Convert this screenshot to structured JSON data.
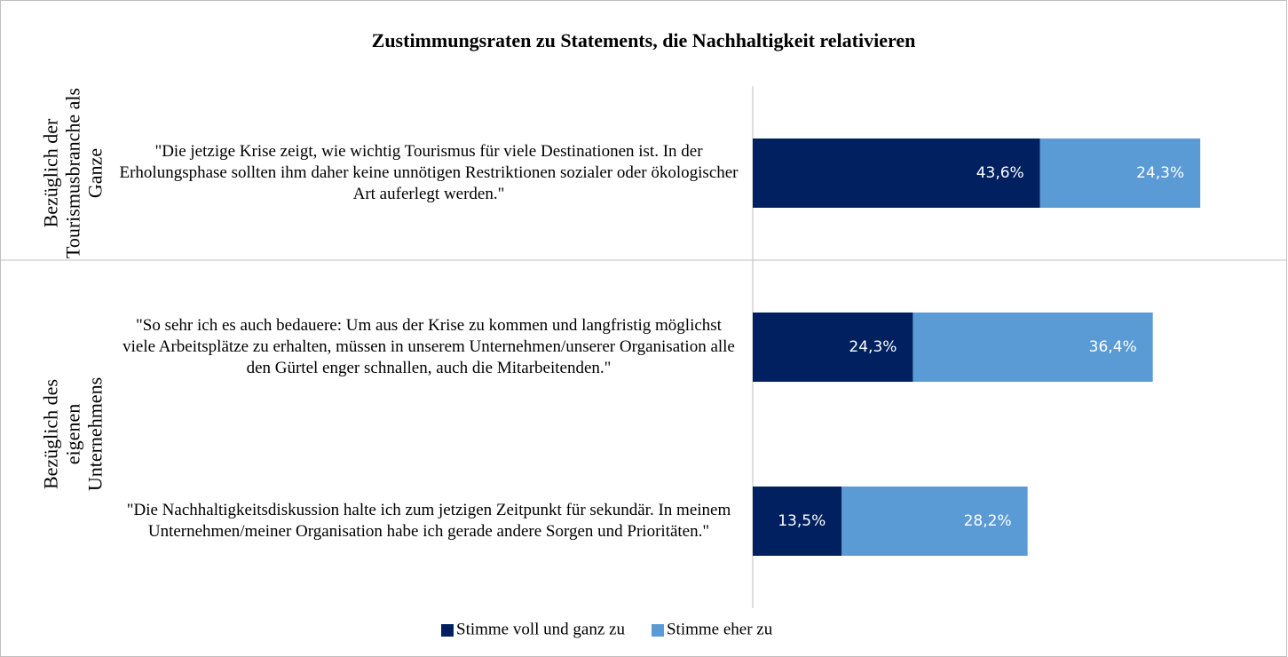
{
  "chart_data": {
    "type": "bar",
    "orientation": "horizontal",
    "stacked": true,
    "title": "Zustimmungsraten zu Statements, die Nachhaltigkeit relativieren",
    "categories": [
      "\"Die jetzige Krise zeigt, wie wichtig Tourismus für viele Destinationen ist. In der Erholungsphase sollten ihm daher keine unnötigen Restriktionen sozialer oder ökologischer Art auferlegt werden.\"",
      "\"So sehr ich es auch bedauere: Um aus der Krise zu kommen und langfristig möglichst viele Arbeitsplätze zu erhalten, müssen in unserem Unternehmen/unserer Organisation alle den Gürtel enger schnallen, auch die Mitarbeitenden.\"",
      "\"Die Nachhaltigkeitsdiskussion halte ich zum jetzigen Zeitpunkt für sekundär. In meinem Unternehmen/meiner Organisation habe ich gerade andere Sorgen und Prioritäten.\""
    ],
    "groups": [
      {
        "label": "Bezüglich der Tourismusbranche als Ganze",
        "categories": [
          0
        ]
      },
      {
        "label": "Bezüglich des eigenen Unternehmens",
        "categories": [
          1,
          2
        ]
      }
    ],
    "series": [
      {
        "name": "Stimme voll und ganz zu",
        "color": "#002060",
        "values": [
          43.6,
          24.3,
          13.5
        ],
        "value_labels": [
          "43,6%",
          "24,3%",
          "13,5%"
        ]
      },
      {
        "name": "Stimme eher zu",
        "color": "#5b9bd5",
        "values": [
          24.3,
          36.4,
          28.2
        ],
        "value_labels": [
          "24,3%",
          "36,4%",
          "28,2%"
        ]
      }
    ],
    "xlim": [
      0,
      80
    ],
    "legend": "bottom"
  }
}
